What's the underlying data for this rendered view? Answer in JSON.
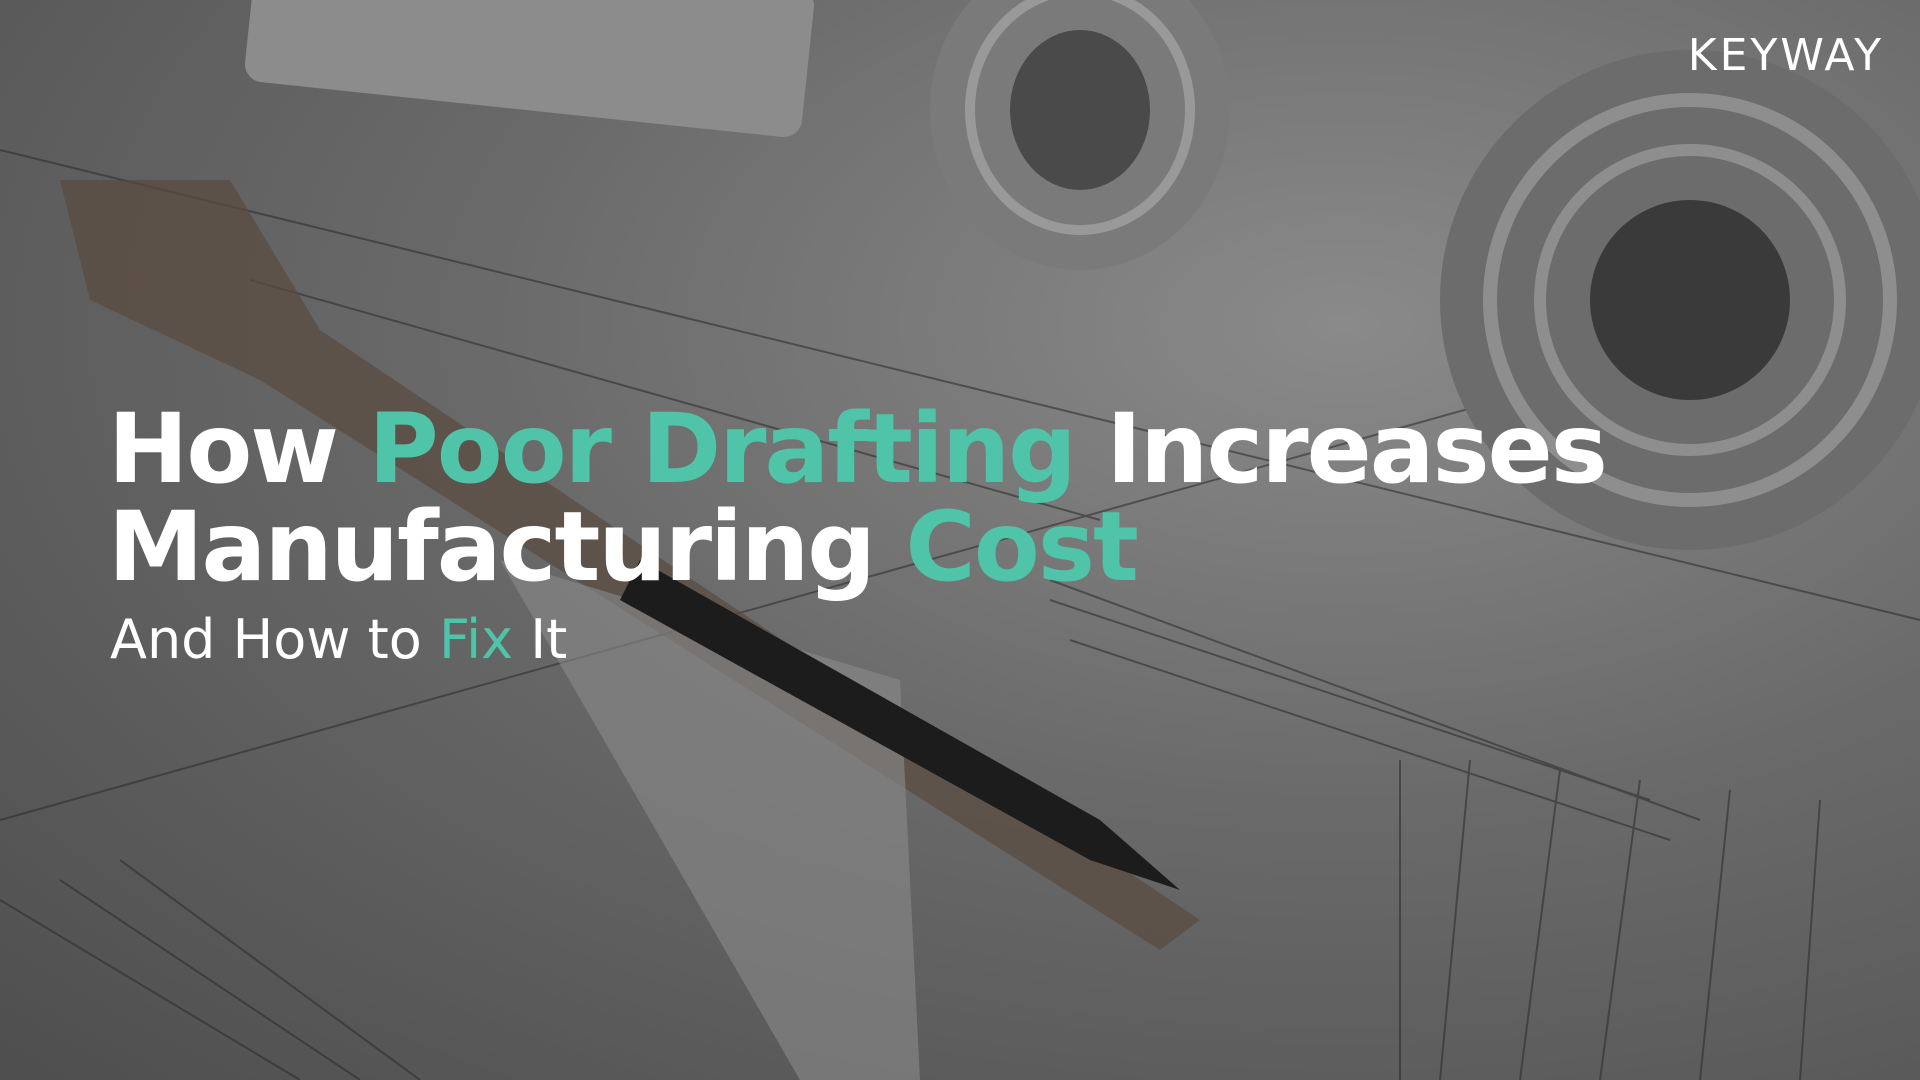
{
  "logo": "KEYWAY",
  "accent_color": "#4fc4a8",
  "text_color": "#ffffff",
  "title": {
    "lines": [
      [
        {
          "text": "How",
          "accent": false
        },
        {
          "text": "Poor Drafting",
          "accent": true
        },
        {
          "text": "Increases",
          "accent": false
        }
      ],
      [
        {
          "text": "Manufacturing",
          "accent": false
        },
        {
          "text": "Cost",
          "accent": true
        }
      ]
    ]
  },
  "subtitle": [
    {
      "text": "And How to",
      "accent": false
    },
    {
      "text": "Fix",
      "accent": true
    },
    {
      "text": "It",
      "accent": false
    }
  ]
}
